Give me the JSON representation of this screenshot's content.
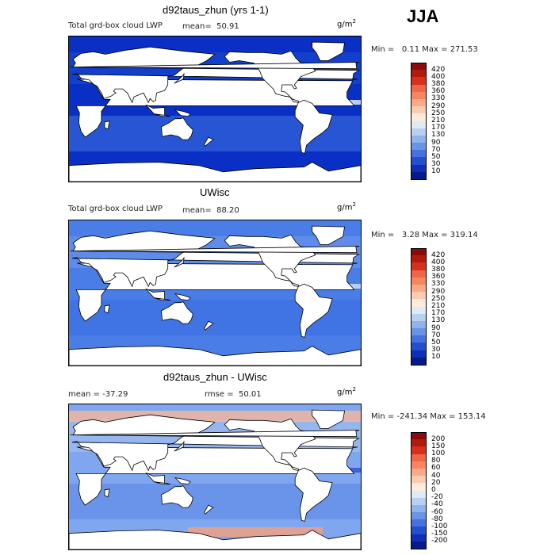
{
  "season": "JJA",
  "panels": [
    {
      "title": "d92taus_zhun (yrs 1-1)",
      "subtitle": "Total grd-box cloud LWP",
      "stat1": "mean=  50.91",
      "stat2": "",
      "units_base": "g/m",
      "units_exp": "2",
      "minmax": "Min =   0.11 Max = 271.53",
      "labels": [
        "420",
        "400",
        "380",
        "360",
        "330",
        "290",
        "250",
        "210",
        "170",
        "130",
        "90",
        "70",
        "50",
        "30",
        "10"
      ],
      "colors": [
        "#8b0a0a",
        "#b31a0e",
        "#d7301f",
        "#ef6548",
        "#f9855e",
        "#fca98a",
        "#fdcbb0",
        "#fdebdc",
        "#deebf7",
        "#b7cff0",
        "#8fb3ec",
        "#6a93e8",
        "#4671de",
        "#2450d0",
        "#0f2fb8",
        "#071a8a"
      ],
      "ocean": [
        "#0a2fc4",
        "#1a4fd6",
        "#3a6fe0"
      ],
      "band_color": "#dfe9fb"
    },
    {
      "title": "UWisc",
      "subtitle": "Total grd-box cloud LWP",
      "stat1": "mean=  88.20",
      "stat2": "",
      "units_base": "g/m",
      "units_exp": "2",
      "minmax": "Min =   3.28 Max = 319.14",
      "labels": [
        "420",
        "400",
        "380",
        "360",
        "330",
        "290",
        "250",
        "210",
        "170",
        "130",
        "90",
        "70",
        "50",
        "30",
        "10"
      ],
      "colors": [
        "#8b0a0a",
        "#b31a0e",
        "#d7301f",
        "#ef6548",
        "#f9855e",
        "#fca98a",
        "#fdcbb0",
        "#fdebdc",
        "#deebf7",
        "#b7cff0",
        "#8fb3ec",
        "#6a93e8",
        "#4671de",
        "#2450d0",
        "#0f2fb8",
        "#071a8a"
      ],
      "ocean": [
        "#4a7ee6",
        "#6f98ec",
        "#3b6ce2"
      ],
      "band_color": "#c9dbf6"
    },
    {
      "title": "d92taus_zhun - UWisc",
      "subtitle": "",
      "stat1": "mean = -37.29",
      "stat2": "rmse =  50.01",
      "units_base": "g/m",
      "units_exp": "2",
      "minmax": "Min = -241.34 Max = 153.14",
      "labels": [
        "200",
        "150",
        "100",
        "80",
        "60",
        "40",
        "20",
        "0",
        "-20",
        "-40",
        "-60",
        "-80",
        "-100",
        "-150",
        "-200"
      ],
      "colors": [
        "#8b0a0a",
        "#b31a0e",
        "#d7301f",
        "#ef6548",
        "#f9855e",
        "#fca98a",
        "#fdcbb0",
        "#fdebdc",
        "#deebf7",
        "#b7cff0",
        "#8fb3ec",
        "#6a93e8",
        "#4671de",
        "#2450d0",
        "#0f2fb8",
        "#071a8a"
      ],
      "ocean": [
        "#7fa6ee",
        "#a9c3f3",
        "#5a88e6"
      ],
      "band_color": "#3058d6"
    }
  ]
}
